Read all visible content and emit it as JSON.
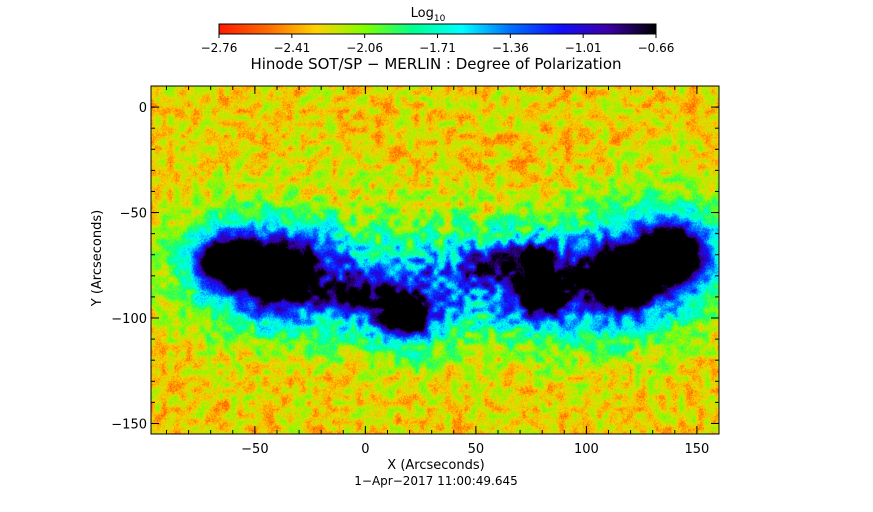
{
  "chart_data": {
    "type": "heatmap",
    "title": "Hinode SOT/SP − MERLIN : Degree of Polarization",
    "xlabel": "X (Arcseconds)",
    "ylabel": "Y (Arcseconds)",
    "xlim": [
      -97,
      160
    ],
    "ylim": [
      -155,
      10
    ],
    "x_ticks": [
      -50,
      0,
      50,
      100,
      150
    ],
    "x_tick_labels": [
      "−50",
      "0",
      "50",
      "100",
      "150"
    ],
    "y_ticks": [
      0,
      -50,
      -100,
      -150
    ],
    "y_tick_labels": [
      "0",
      "−50",
      "−100",
      "−150"
    ],
    "timestamp": "1−Apr−2017 11:00:49.645",
    "colorbar": {
      "label_main": "Log",
      "label_sub": "10",
      "range": [
        -2.76,
        -0.66
      ],
      "ticks": [
        -2.76,
        -2.41,
        -2.06,
        -1.71,
        -1.36,
        -1.01,
        -0.66
      ],
      "tick_labels": [
        "−2.76",
        "−2.41",
        "−2.06",
        "−1.71",
        "−1.36",
        "−1.01",
        "−0.66"
      ],
      "colors": [
        "#ff1a00",
        "#ff6a00",
        "#ffd200",
        "#7fff00",
        "#00ff90",
        "#00ffff",
        "#0070ff",
        "#1010ff",
        "#3c00a8",
        "#000000"
      ]
    },
    "features": [
      {
        "x": -40,
        "y": -78,
        "strength": 1.0,
        "rx": 14,
        "ry": 11
      },
      {
        "x": -63,
        "y": -73,
        "strength": 0.85,
        "rx": 10,
        "ry": 9
      },
      {
        "x": 18,
        "y": -98,
        "strength": 0.9,
        "rx": 9,
        "ry": 8
      },
      {
        "x": 80,
        "y": -88,
        "strength": 0.7,
        "rx": 10,
        "ry": 9
      },
      {
        "x": 77,
        "y": -72,
        "strength": 0.55,
        "rx": 6,
        "ry": 5
      },
      {
        "x": 115,
        "y": -82,
        "strength": 0.9,
        "rx": 12,
        "ry": 11
      },
      {
        "x": 138,
        "y": -70,
        "strength": 1.0,
        "rx": 13,
        "ry": 12
      },
      {
        "x": -5,
        "y": -88,
        "strength": 0.35,
        "rx": 14,
        "ry": 6
      },
      {
        "x": 55,
        "y": -75,
        "strength": 0.35,
        "rx": 12,
        "ry": 7
      }
    ]
  }
}
